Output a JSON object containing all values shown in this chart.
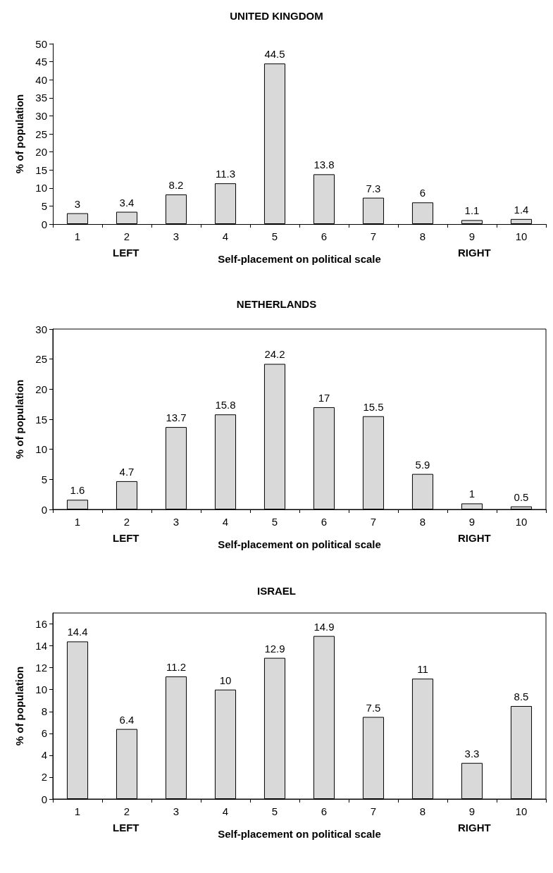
{
  "chart_data": [
    {
      "type": "bar",
      "title": "UNITED KINGDOM",
      "xlabel": "Self-placement on political scale",
      "ylabel": "% of population",
      "annotations": [
        "LEFT",
        "RIGHT"
      ],
      "categories": [
        "1",
        "2",
        "3",
        "4",
        "5",
        "6",
        "7",
        "8",
        "9",
        "10"
      ],
      "series": [
        {
          "color": "#d9d9d9",
          "values": [
            3,
            3.4,
            8.2,
            11.3,
            44.5,
            13.8,
            7.3,
            6,
            1.1,
            1.4
          ]
        }
      ],
      "ylim": [
        0,
        50
      ],
      "yticks": [
        0,
        5,
        10,
        15,
        20,
        25,
        30,
        35,
        40,
        45,
        50
      ],
      "data_labels": true,
      "grid": false
    },
    {
      "type": "bar",
      "title": "NETHERLANDS",
      "xlabel": "Self-placement on political scale",
      "ylabel": "% of population",
      "annotations": [
        "LEFT",
        "RIGHT"
      ],
      "categories": [
        "1",
        "2",
        "3",
        "4",
        "5",
        "6",
        "7",
        "8",
        "9",
        "10"
      ],
      "series": [
        {
          "color": "#d9d9d9",
          "values": [
            1.6,
            4.7,
            13.7,
            15.8,
            24.2,
            17,
            15.5,
            5.9,
            1,
            0.5
          ]
        }
      ],
      "ylim": [
        0,
        30
      ],
      "yticks": [
        0,
        5,
        10,
        15,
        20,
        25,
        30
      ],
      "data_labels": true,
      "grid": false
    },
    {
      "type": "bar",
      "title": "ISRAEL",
      "xlabel": "Self-placement on political scale",
      "ylabel": "% of population",
      "annotations": [
        "LEFT",
        "RIGHT"
      ],
      "categories": [
        "1",
        "2",
        "3",
        "4",
        "5",
        "6",
        "7",
        "8",
        "9",
        "10"
      ],
      "series": [
        {
          "color": "#d9d9d9",
          "values": [
            14.4,
            6.4,
            11.2,
            10,
            12.9,
            14.9,
            7.5,
            11,
            3.3,
            8.5
          ]
        }
      ],
      "ylim": [
        0,
        17
      ],
      "yticks": [
        0,
        2,
        4,
        6,
        8,
        10,
        12,
        14,
        16
      ],
      "data_labels": true,
      "grid": false
    }
  ]
}
